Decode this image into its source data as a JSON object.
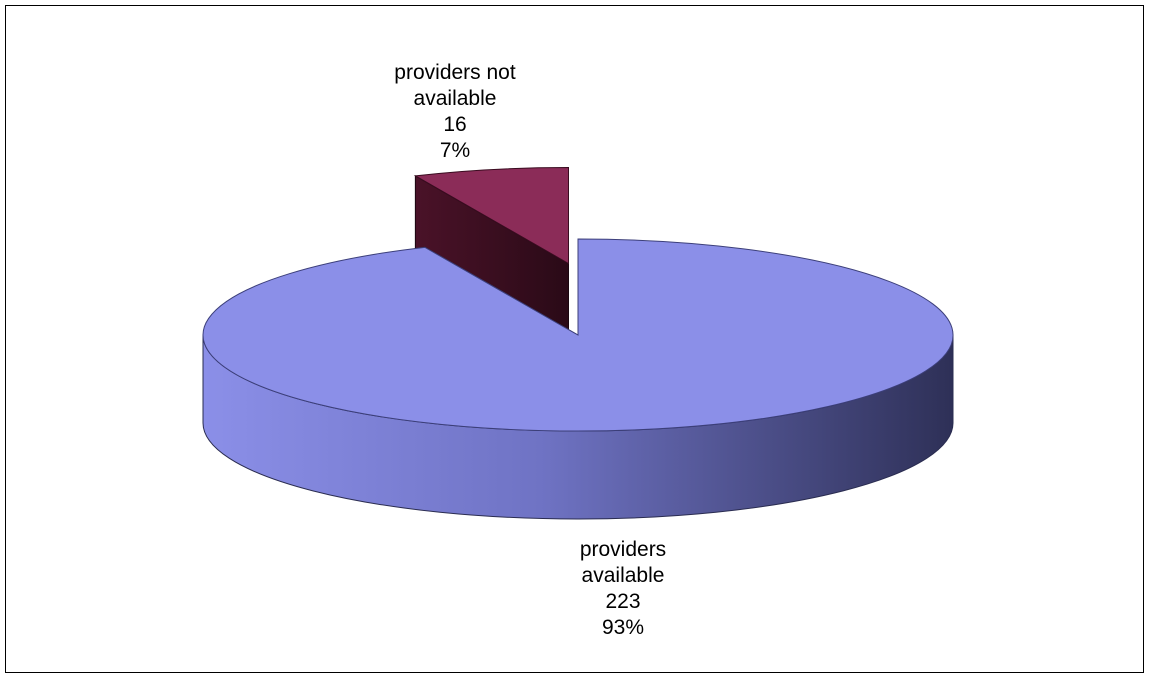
{
  "chart_data": {
    "type": "pie",
    "style": "3d-exploded",
    "title": "",
    "slices": [
      {
        "label_lines": [
          "providers",
          "available"
        ],
        "value": 223,
        "percent": "93%",
        "color": "#8b8fe8",
        "exploded": false
      },
      {
        "label_lines": [
          "providers not",
          "available"
        ],
        "value": 16,
        "percent": "7%",
        "color": "#8b2c58",
        "exploded": true
      }
    ],
    "legend": "none"
  }
}
